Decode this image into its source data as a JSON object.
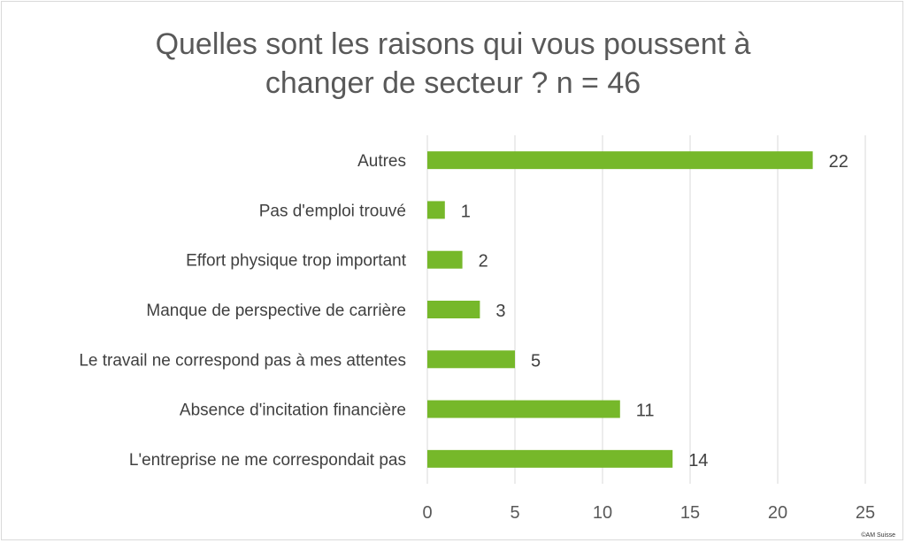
{
  "chart_data": {
    "type": "bar",
    "orientation": "horizontal",
    "title_lines": [
      "Quelles sont les raisons qui vous poussent à",
      "changer de secteur ? n = 46"
    ],
    "categories": [
      "Autres",
      "Pas d'emploi trouvé",
      "Effort physique trop important",
      "Manque de perspective de carrière",
      "Le travail ne correspond pas à mes attentes",
      "Absence d'incitation financière",
      "L'entreprise ne me correspondait pas"
    ],
    "values": [
      22,
      1,
      2,
      3,
      5,
      11,
      14
    ],
    "xlim": [
      0,
      25
    ],
    "xticks": [
      0,
      5,
      10,
      15,
      20,
      25
    ],
    "grid": true,
    "bar_color": "#76b82a",
    "data_labels": true
  },
  "credit": "©AM Suisse"
}
